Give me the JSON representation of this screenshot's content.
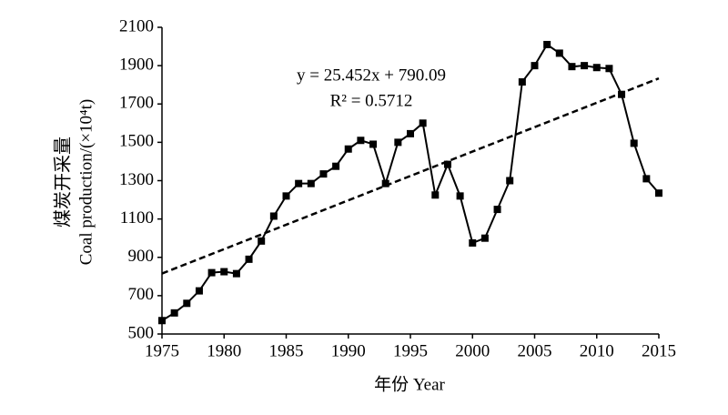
{
  "chart_data": {
    "type": "line",
    "x": [
      1975,
      1976,
      1977,
      1978,
      1979,
      1980,
      1981,
      1982,
      1983,
      1984,
      1985,
      1986,
      1987,
      1988,
      1989,
      1990,
      1991,
      1992,
      1993,
      1994,
      1995,
      1996,
      1997,
      1998,
      1999,
      2000,
      2001,
      2002,
      2003,
      2004,
      2005,
      2006,
      2007,
      2008,
      2009,
      2010,
      2011,
      2012,
      2013,
      2014,
      2015
    ],
    "values": [
      570,
      610,
      660,
      725,
      820,
      825,
      815,
      890,
      985,
      1115,
      1220,
      1285,
      1285,
      1335,
      1375,
      1465,
      1510,
      1490,
      1285,
      1500,
      1545,
      1600,
      1225,
      1385,
      1220,
      975,
      1000,
      1150,
      1300,
      1815,
      1900,
      2010,
      1965,
      1895,
      1900,
      1890,
      1885,
      1750,
      1495,
      1310,
      1235
    ],
    "color": "#000000",
    "trendline": {
      "x": [
        1975,
        2015
      ],
      "values": [
        815.5,
        1833.6
      ],
      "color": "#000000"
    },
    "annotations": [
      "y = 25.452x + 790.09",
      "R² = 0.5712"
    ],
    "y_label": [
      "煤炭开采量",
      "Coal production/(×10⁴t)"
    ],
    "x_label": "年份 Year",
    "xlim": [
      1975,
      2015
    ],
    "xticks": [
      1975,
      1980,
      1985,
      1990,
      1995,
      2000,
      2005,
      2010,
      2015
    ],
    "ylim": [
      500,
      2100
    ],
    "yticks": [
      500,
      700,
      900,
      1100,
      1300,
      1500,
      1700,
      1900,
      2100
    ]
  }
}
